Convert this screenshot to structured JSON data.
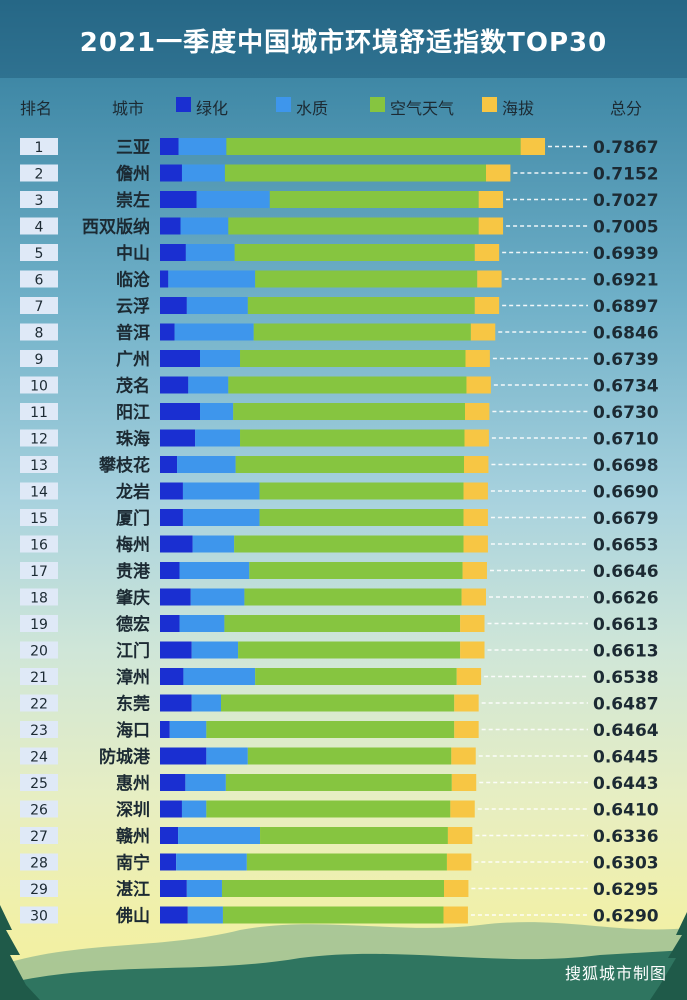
{
  "title": "2021一季度中国城市环境舒适指数TOP30",
  "headers": {
    "rank": "排名",
    "city": "城市",
    "total": "总分"
  },
  "footer": "搜狐城市制图",
  "chart_data": {
    "type": "bar",
    "orientation": "horizontal",
    "stacked": true,
    "categories": [
      "三亚",
      "儋州",
      "崇左",
      "西双版纳",
      "中山",
      "临沧",
      "云浮",
      "普洱",
      "广州",
      "茂名",
      "阳江",
      "珠海",
      "攀枝花",
      "龙岩",
      "厦门",
      "梅州",
      "贵港",
      "肇庆",
      "德宏",
      "江门",
      "漳州",
      "东莞",
      "海口",
      "防城港",
      "惠州",
      "深圳",
      "赣州",
      "南宁",
      "湛江",
      "佛山"
    ],
    "ranks": [
      "1",
      "2",
      "3",
      "4",
      "5",
      "6",
      "7",
      "8",
      "9",
      "10",
      "11",
      "12",
      "13",
      "14",
      "15",
      "16",
      "17",
      "18",
      "19",
      "20",
      "21",
      "22",
      "23",
      "24",
      "25",
      "26",
      "27",
      "28",
      "29",
      "30"
    ],
    "totals": [
      "0.7867",
      "0.7152",
      "0.7027",
      "0.7005",
      "0.6939",
      "0.6921",
      "0.6897",
      "0.6846",
      "0.6739",
      "0.6734",
      "0.6730",
      "0.6710",
      "0.6698",
      "0.6690",
      "0.6679",
      "0.6653",
      "0.6646",
      "0.6626",
      "0.6613",
      "0.6613",
      "0.6538",
      "0.6487",
      "0.6464",
      "0.6445",
      "0.6443",
      "0.6410",
      "0.6336",
      "0.6303",
      "0.6295",
      "0.6290"
    ],
    "series": [
      {
        "name": "绿化",
        "color": "#1a2fd1",
        "values": [
          0.038,
          0.045,
          0.075,
          0.042,
          0.053,
          0.017,
          0.055,
          0.03,
          0.082,
          0.058,
          0.082,
          0.072,
          0.035,
          0.047,
          0.047,
          0.067,
          0.04,
          0.063,
          0.04,
          0.065,
          0.048,
          0.065,
          0.02,
          0.095,
          0.052,
          0.045,
          0.037,
          0.033,
          0.055,
          0.057
        ]
      },
      {
        "name": "水质",
        "color": "#3e96ec",
        "values": [
          0.098,
          0.088,
          0.15,
          0.098,
          0.1,
          0.178,
          0.125,
          0.162,
          0.082,
          0.082,
          0.068,
          0.092,
          0.12,
          0.157,
          0.157,
          0.085,
          0.143,
          0.11,
          0.092,
          0.095,
          0.147,
          0.06,
          0.075,
          0.085,
          0.083,
          0.05,
          0.168,
          0.145,
          0.072,
          0.072
        ]
      },
      {
        "name": "空气天气",
        "color": "#86c540",
        "values": [
          0.603,
          0.535,
          0.428,
          0.513,
          0.492,
          0.455,
          0.465,
          0.445,
          0.462,
          0.488,
          0.475,
          0.46,
          0.468,
          0.418,
          0.418,
          0.47,
          0.437,
          0.445,
          0.483,
          0.455,
          0.413,
          0.478,
          0.508,
          0.417,
          0.463,
          0.5,
          0.385,
          0.41,
          0.455,
          0.452
        ]
      },
      {
        "name": "海拔",
        "color": "#f7c644",
        "values": [
          0.05,
          0.05,
          0.05,
          0.05,
          0.05,
          0.05,
          0.05,
          0.05,
          0.05,
          0.05,
          0.05,
          0.05,
          0.05,
          0.05,
          0.05,
          0.05,
          0.05,
          0.05,
          0.05,
          0.05,
          0.05,
          0.05,
          0.05,
          0.05,
          0.05,
          0.05,
          0.05,
          0.05,
          0.05,
          0.05
        ]
      }
    ],
    "legend": "top"
  }
}
